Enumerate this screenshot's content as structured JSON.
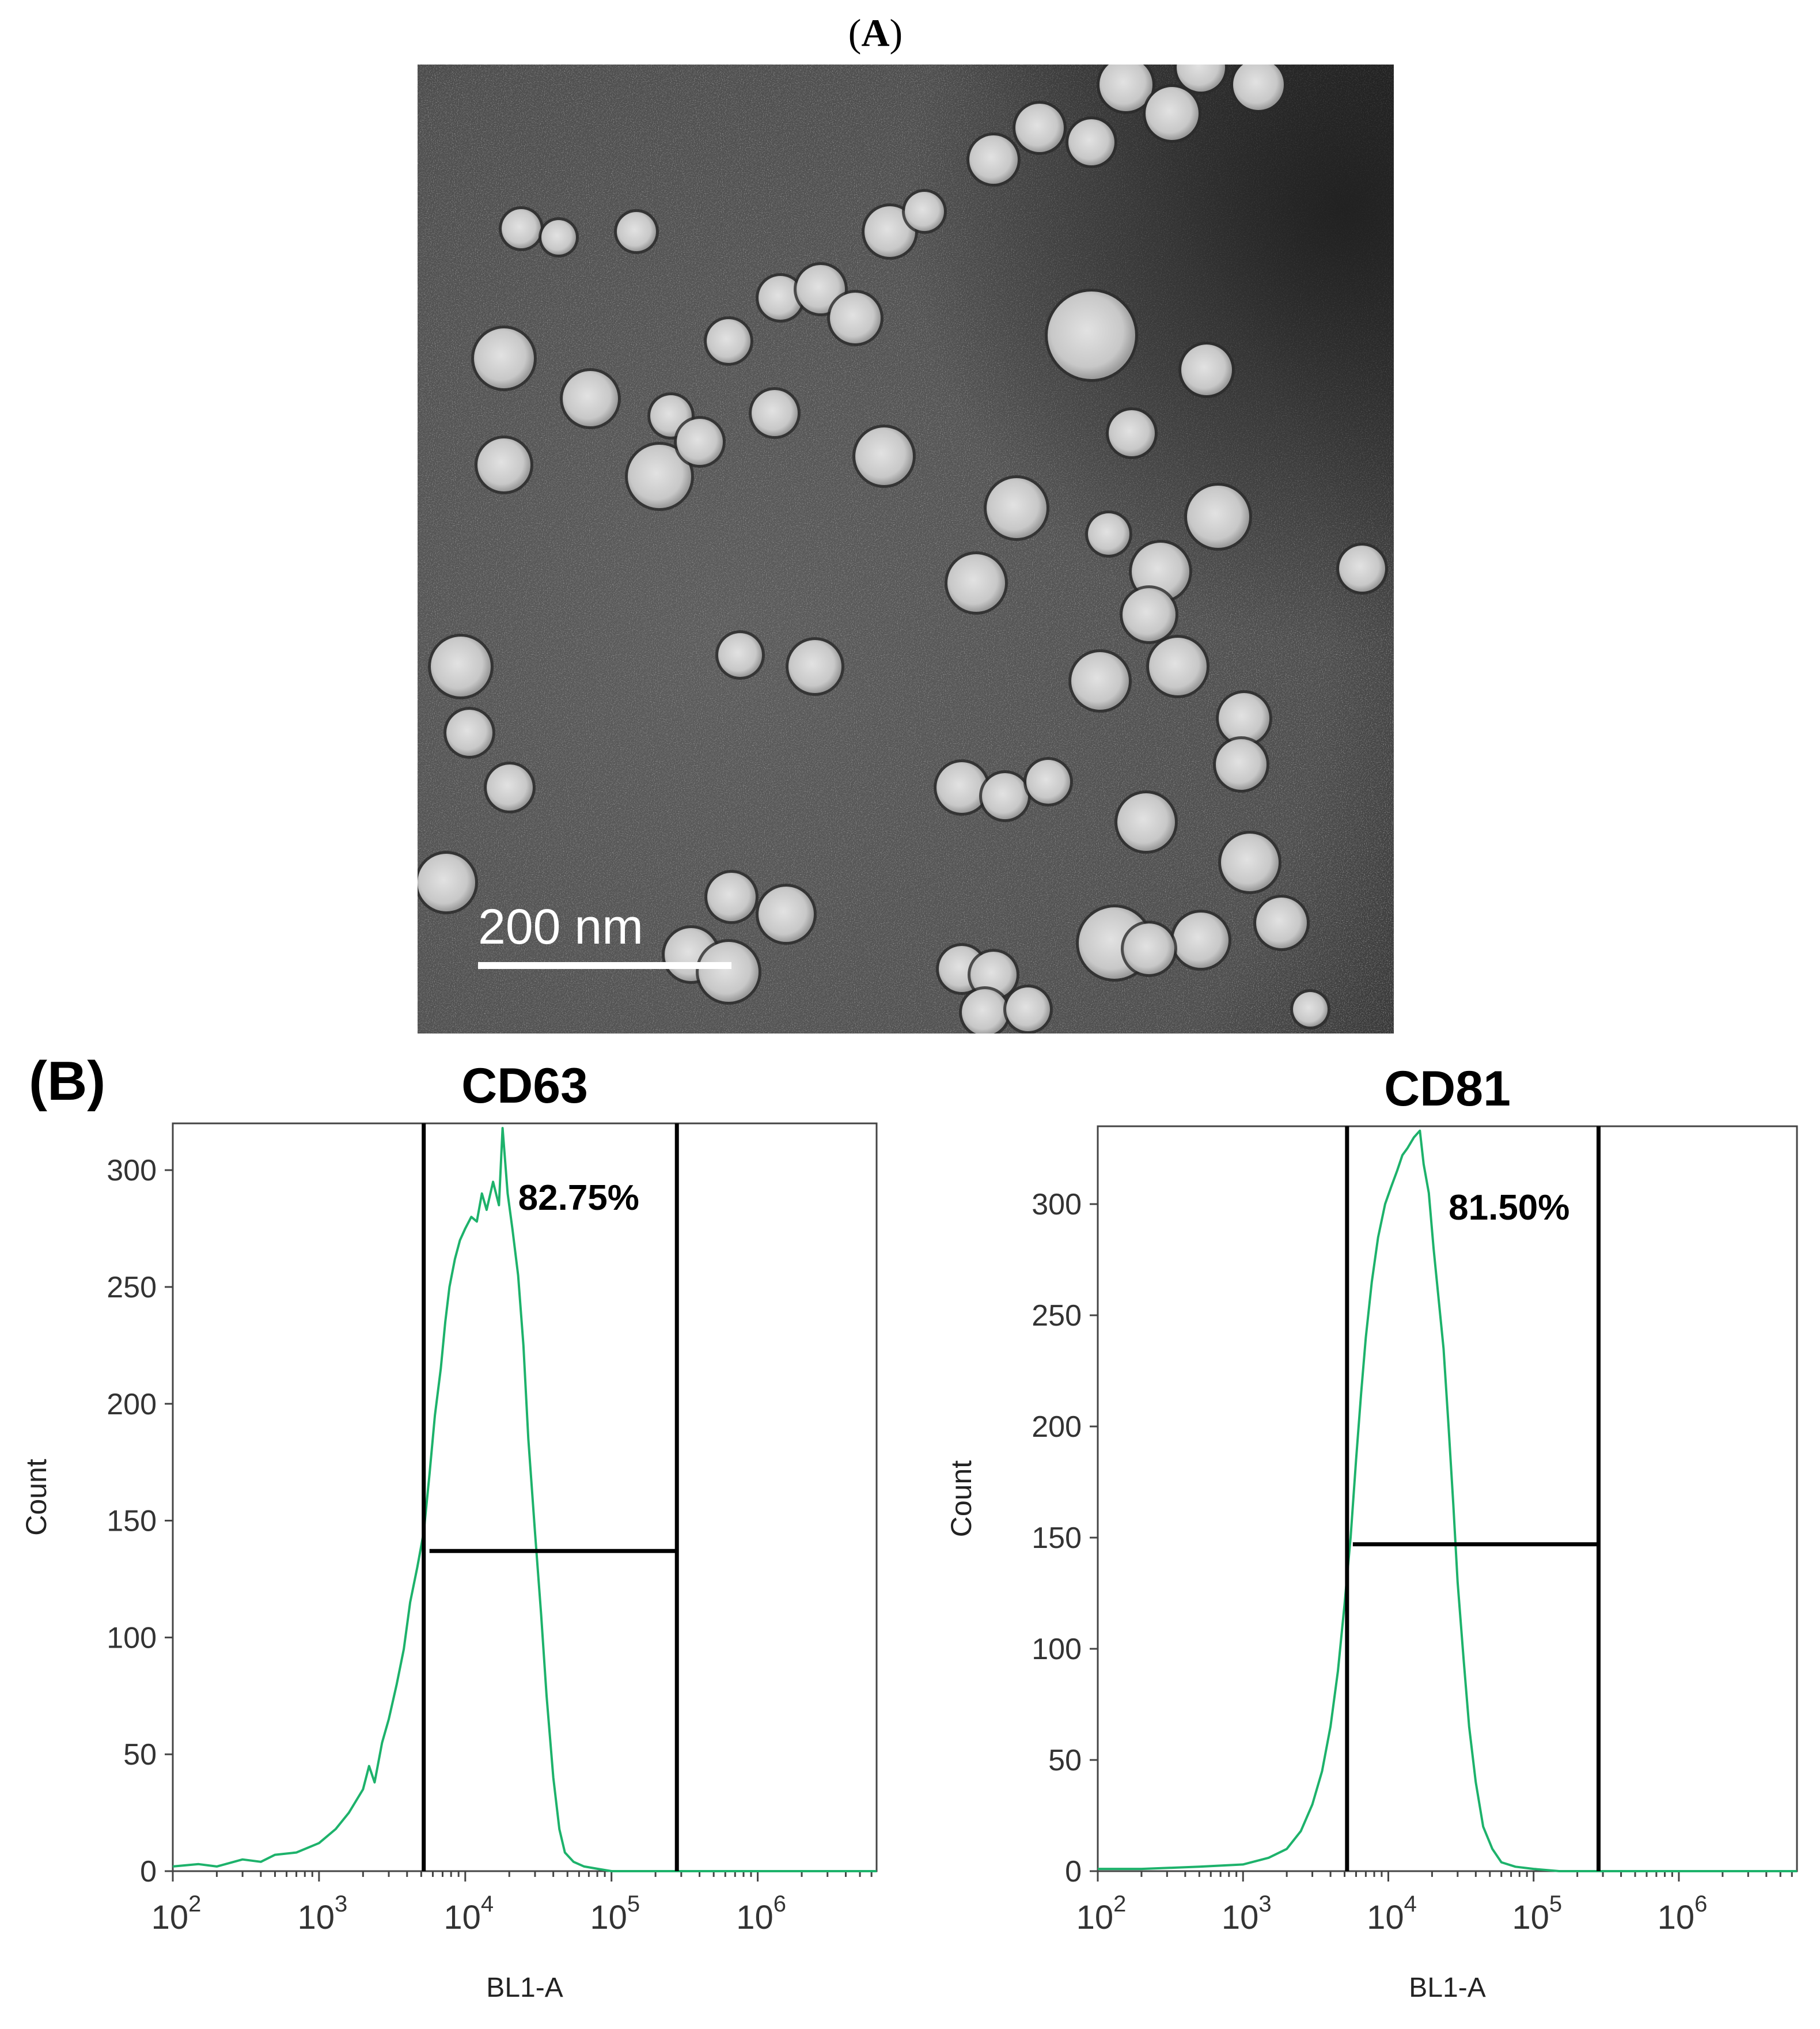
{
  "panel_a": {
    "label_open": "(",
    "label_letter": "A",
    "label_close": ")",
    "scale_bar_text": "200 nm",
    "image_description_icon": "tem-micrograph-vesicles"
  },
  "panel_b": {
    "label": "(B)"
  },
  "colors": {
    "histogram": "#1db26b",
    "gate": "#000000",
    "axis_text": "#333333",
    "tem_background": "#555555",
    "vesicle": "#d6d6d6"
  },
  "chart_data": [
    {
      "type": "line",
      "title": "CD63",
      "xlabel": "BL1-A",
      "ylabel": "Count",
      "x_scale": "log",
      "xlim": [
        100,
        6500000
      ],
      "ylim": [
        0,
        320
      ],
      "x_tick_labels": [
        {
          "value": 100,
          "base": "10",
          "exp": "2"
        },
        {
          "value": 1000,
          "base": "10",
          "exp": "3"
        },
        {
          "value": 10000,
          "base": "10",
          "exp": "4"
        },
        {
          "value": 100000,
          "base": "10",
          "exp": "5"
        },
        {
          "value": 1000000,
          "base": "10",
          "exp": "6"
        }
      ],
      "y_ticks": [
        0,
        50,
        100,
        150,
        200,
        250,
        300
      ],
      "gate": {
        "x_low": 5200,
        "x_high": 280000,
        "marker_y": 137,
        "label": "82.75%",
        "label_x": 23000,
        "label_y": 283
      },
      "series": [
        {
          "x": [
            100,
            150,
            200,
            300,
            400,
            500,
            700,
            1000,
            1300,
            1600,
            2000,
            2200,
            2400,
            2700,
            3000,
            3400,
            3800,
            4200,
            4700,
            5200,
            5700,
            6200,
            6800,
            7300,
            7800,
            8500,
            9200,
            10000,
            11000,
            12000,
            13000,
            14000,
            15500,
            17000,
            18000,
            19500,
            21000,
            23000,
            25000,
            27000,
            30000,
            33000,
            36000,
            40000,
            44000,
            48000,
            55000,
            65000,
            80000,
            100000,
            150000,
            300000,
            1000000,
            6500000
          ],
          "y": [
            2,
            3,
            2,
            5,
            4,
            7,
            8,
            12,
            18,
            25,
            35,
            45,
            38,
            55,
            65,
            80,
            95,
            115,
            130,
            145,
            170,
            195,
            215,
            235,
            250,
            262,
            270,
            275,
            280,
            278,
            290,
            283,
            295,
            285,
            318,
            290,
            275,
            255,
            225,
            185,
            145,
            110,
            75,
            40,
            18,
            8,
            4,
            2,
            1,
            0,
            0,
            0,
            0,
            0
          ]
        }
      ]
    },
    {
      "type": "line",
      "title": "CD81",
      "xlabel": "BL1-A",
      "ylabel": "Count",
      "x_scale": "log",
      "xlim": [
        100,
        6500000
      ],
      "ylim": [
        0,
        335
      ],
      "x_tick_labels": [
        {
          "value": 100,
          "base": "10",
          "exp": "2"
        },
        {
          "value": 1000,
          "base": "10",
          "exp": "3"
        },
        {
          "value": 10000,
          "base": "10",
          "exp": "4"
        },
        {
          "value": 100000,
          "base": "10",
          "exp": "5"
        },
        {
          "value": 1000000,
          "base": "10",
          "exp": "6"
        }
      ],
      "y_ticks": [
        0,
        50,
        100,
        150,
        200,
        250,
        300
      ],
      "gate": {
        "x_low": 5200,
        "x_high": 280000,
        "marker_y": 147,
        "label": "81.50%",
        "label_x": 26000,
        "label_y": 293
      },
      "series": [
        {
          "x": [
            100,
            200,
            500,
            1000,
            1500,
            2000,
            2500,
            3000,
            3500,
            4000,
            4500,
            5000,
            5500,
            6000,
            6500,
            7000,
            7700,
            8500,
            9500,
            10500,
            11500,
            12500,
            13500,
            15000,
            16500,
            17500,
            19000,
            20500,
            22000,
            24000,
            26000,
            28000,
            30000,
            33000,
            36000,
            40000,
            45000,
            52000,
            60000,
            75000,
            100000,
            150000,
            400000,
            6500000
          ],
          "y": [
            1,
            1,
            2,
            3,
            6,
            10,
            18,
            30,
            45,
            65,
            90,
            120,
            150,
            185,
            215,
            240,
            265,
            285,
            300,
            308,
            315,
            322,
            325,
            330,
            333,
            318,
            305,
            280,
            260,
            235,
            200,
            165,
            130,
            95,
            65,
            40,
            20,
            10,
            4,
            2,
            1,
            0,
            0,
            0
          ]
        }
      ]
    }
  ]
}
